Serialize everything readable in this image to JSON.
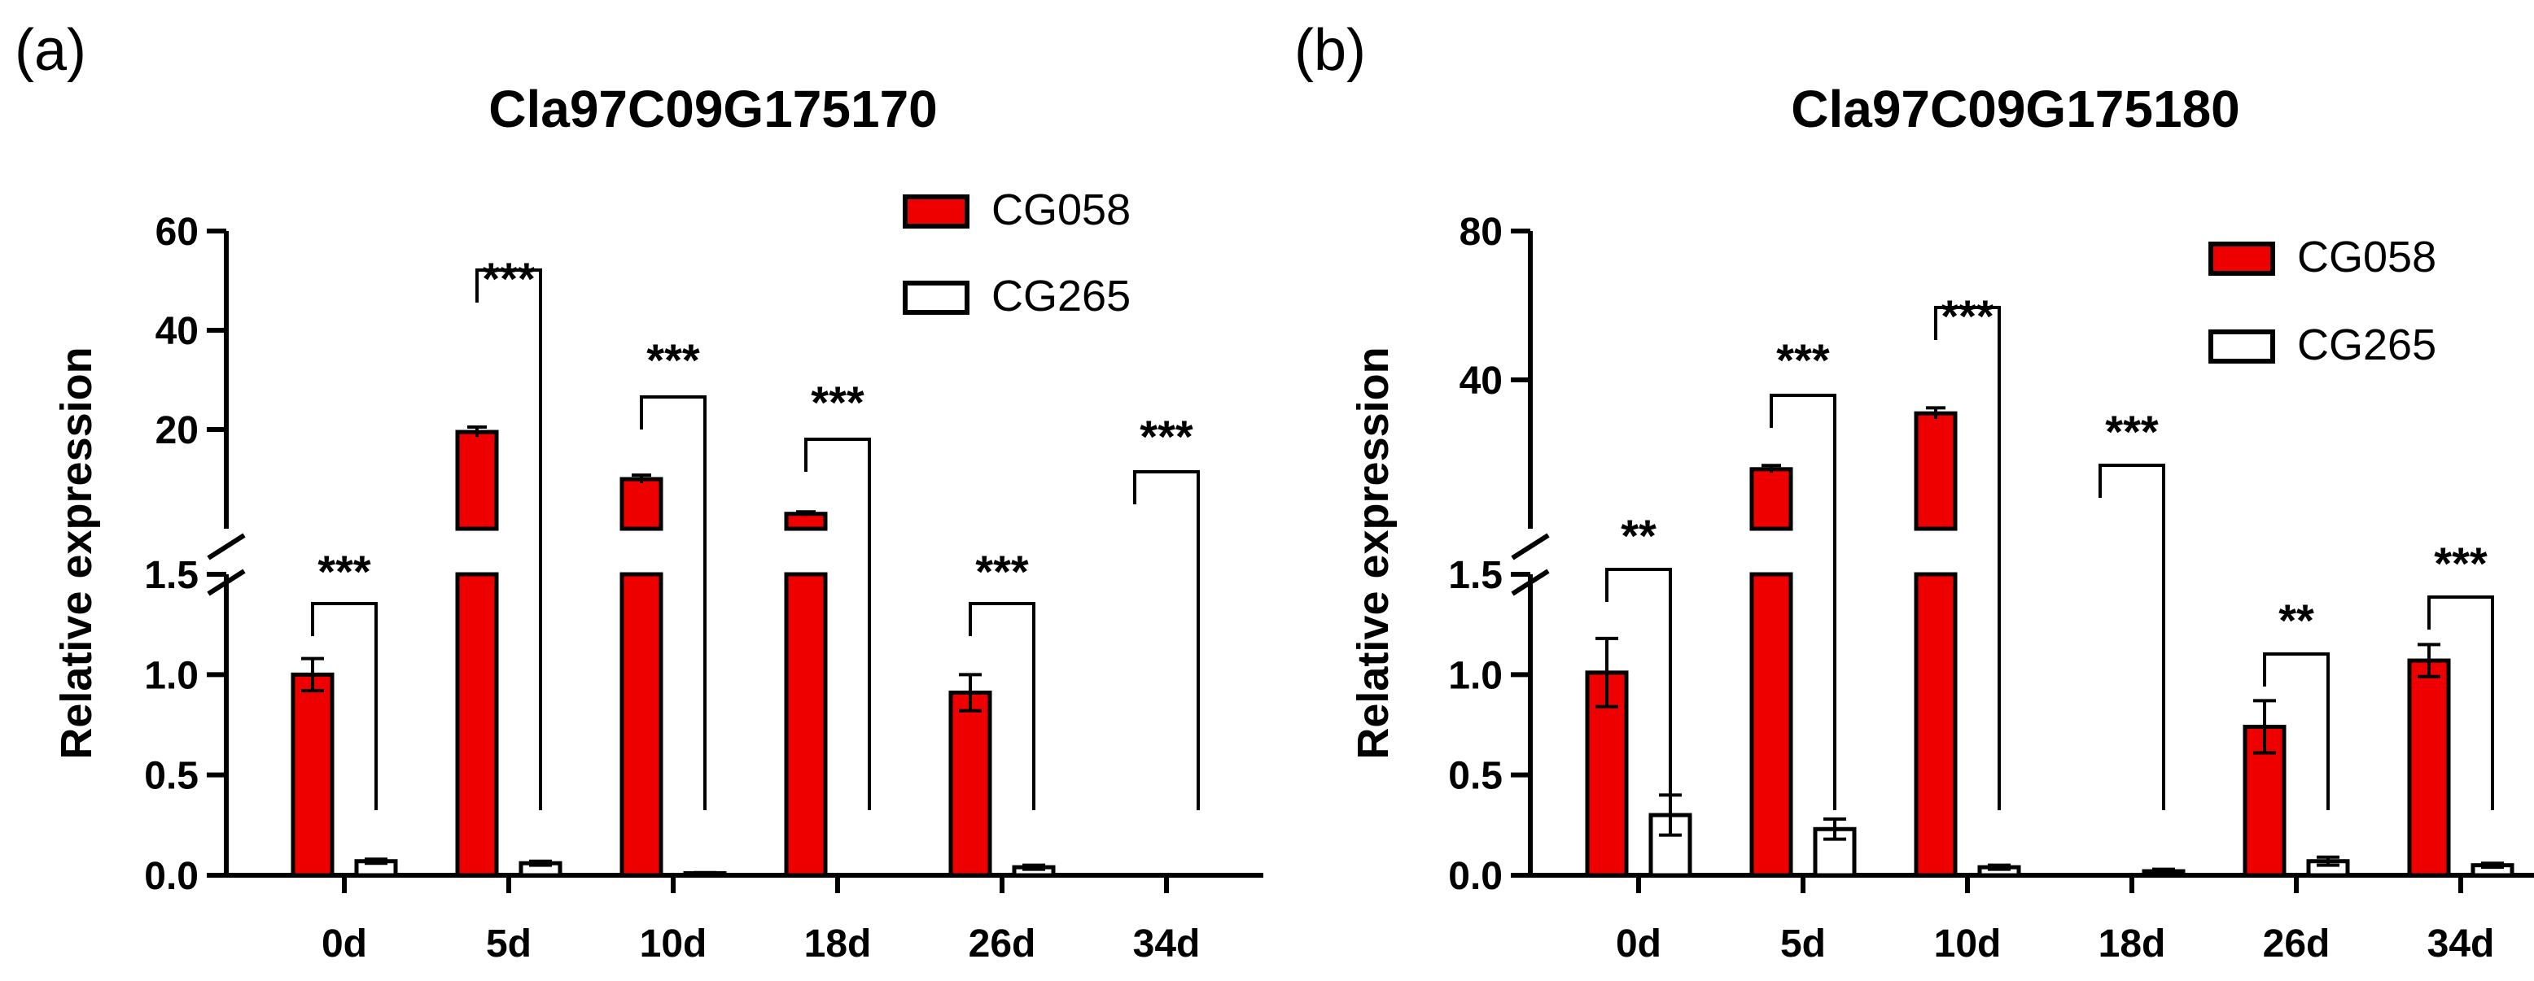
{
  "colors": {
    "cg058": "#ee0000",
    "cg265": "#ffffff",
    "stroke": "#000000"
  },
  "chart_data": [
    {
      "panel": "(a)",
      "type": "bar",
      "title": "Cla97C09G175170",
      "xlabel": "",
      "ylabel": "Relative expression",
      "categories": [
        "0d",
        "5d",
        "10d",
        "18d",
        "26d",
        "34d"
      ],
      "axis_break": {
        "lower_ylim": [
          0,
          1.5
        ],
        "upper_ylim": [
          0,
          60
        ],
        "lower_ticks": [
          "0.0",
          "0.5",
          "1.0",
          "1.5"
        ],
        "upper_ticks": [
          "20",
          "40",
          "60"
        ]
      },
      "series": [
        {
          "name": "CG058",
          "values": [
            1.0,
            19.5,
            10.0,
            3.0,
            0.91,
            0.0
          ],
          "errors": [
            0.08,
            1.0,
            0.8,
            0.4,
            0.09,
            0.0
          ]
        },
        {
          "name": "CG265",
          "values": [
            0.07,
            0.06,
            0.01,
            0.0,
            0.04,
            0.0
          ],
          "errors": [
            0.01,
            0.01,
            0.003,
            0.0,
            0.01,
            0.0
          ]
        }
      ],
      "significance": [
        "***",
        "***",
        "***",
        "***",
        "***",
        "***"
      ]
    },
    {
      "panel": "(b)",
      "type": "bar",
      "title": "Cla97C09G175180",
      "xlabel": "",
      "ylabel": "Relative expression",
      "categories": [
        "0d",
        "5d",
        "10d",
        "18d",
        "26d",
        "34d"
      ],
      "axis_break": {
        "lower_ylim": [
          0,
          1.5
        ],
        "upper_ylim": [
          0,
          80
        ],
        "lower_ticks": [
          "0.0",
          "0.5",
          "1.0",
          "1.5"
        ],
        "upper_ticks": [
          "40",
          "80"
        ]
      },
      "series": [
        {
          "name": "CG058",
          "values": [
            1.01,
            16.0,
            31.0,
            0.0,
            0.74,
            1.07
          ],
          "errors": [
            0.17,
            1.0,
            1.5,
            0.0,
            0.13,
            0.08
          ]
        },
        {
          "name": "CG265",
          "values": [
            0.3,
            0.23,
            0.04,
            0.02,
            0.07,
            0.05
          ],
          "errors": [
            0.1,
            0.05,
            0.01,
            0.01,
            0.02,
            0.01
          ]
        }
      ],
      "significance": [
        "**",
        "***",
        "***",
        "***",
        "**",
        "***"
      ]
    }
  ]
}
